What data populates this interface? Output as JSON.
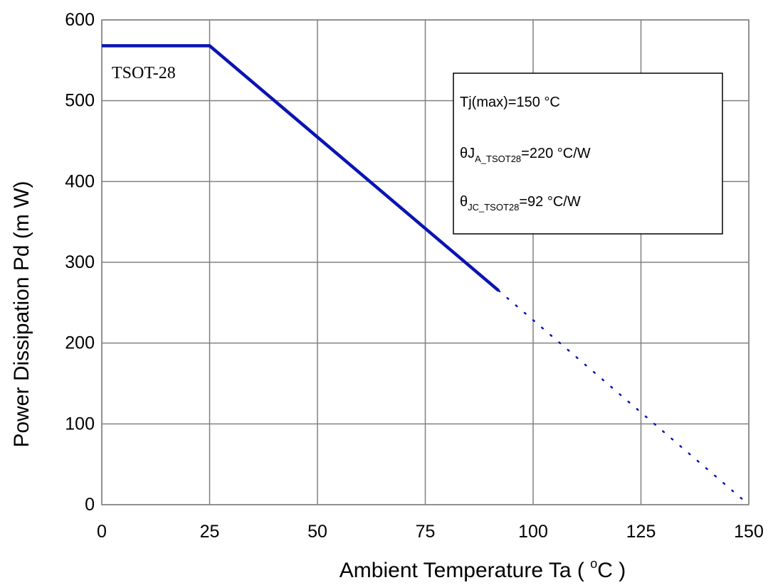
{
  "chart_data": {
    "type": "line",
    "xlabel": "Ambient Temperature Ta ( °C )",
    "xlabel_main": "Ambient Temperature Ta ( ",
    "xlabel_sup": "o",
    "xlabel_tail": "C )",
    "ylabel": "Power Dissipation Pd (m W)",
    "xlim": [
      0,
      150
    ],
    "ylim": [
      0,
      600
    ],
    "xticks": [
      0,
      25,
      50,
      75,
      100,
      125,
      150
    ],
    "yticks": [
      0,
      100,
      200,
      300,
      400,
      500,
      600
    ],
    "grid": true,
    "series": [
      {
        "name": "TSOT-28",
        "color": "#0a14b4",
        "solid": [
          [
            0,
            568
          ],
          [
            25,
            568
          ],
          [
            92,
            265
          ]
        ],
        "dotted": [
          [
            92,
            265
          ],
          [
            150,
            0
          ]
        ]
      }
    ],
    "annotation_box": {
      "tj_line": "Tj(max)=150 °C",
      "theta_ja": {
        "base": "θJ",
        "sub": "A_TSOT28",
        "tail": "=220 °C/W"
      },
      "theta_jc": {
        "base": "θ",
        "sub": "JC_TSOT28",
        "tail": "=92 °C/W"
      }
    }
  }
}
